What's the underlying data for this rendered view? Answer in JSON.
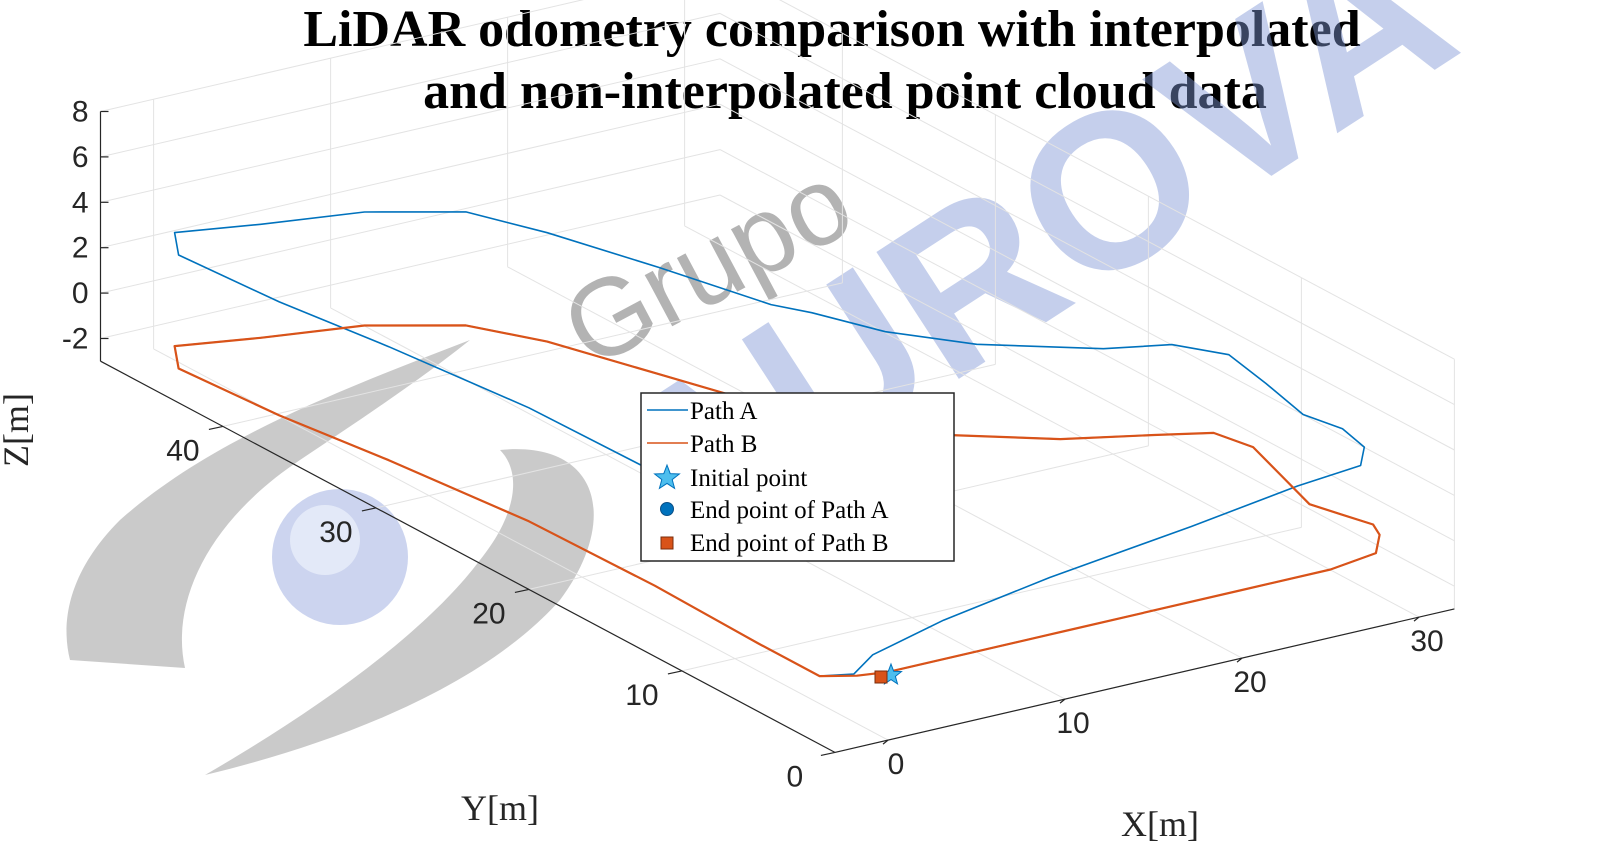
{
  "title_lines": [
    "LiDAR odometry comparison with interpolated",
    "and non-interpolated point cloud data"
  ],
  "watermark": {
    "small": "Grupo",
    "large": "AUROVA"
  },
  "colors": {
    "path_a": "#0072BD",
    "path_b": "#D95319",
    "grid": "#e3e3e3",
    "axis": "#262626"
  },
  "chart_data": {
    "type": "line3d",
    "xlabel": "X[m]",
    "ylabel": "Y[m]",
    "zlabel": "Z[m]",
    "xlim": [
      -3,
      32
    ],
    "ylim": [
      0,
      48
    ],
    "zlim": [
      -3,
      8
    ],
    "x_ticks": [
      "0",
      "10",
      "20",
      "30"
    ],
    "y_ticks": [
      "0",
      "10",
      "20",
      "30",
      "40"
    ],
    "z_ticks": [
      "-2",
      "0",
      "2",
      "4",
      "6",
      "8"
    ],
    "grid": true,
    "legend_position": "center",
    "series": [
      {
        "name": "Path A",
        "points": [
          [
            0,
            0,
            0
          ],
          [
            10,
            0,
            0
          ],
          [
            20,
            0,
            0
          ],
          [
            25,
            0,
            0
          ],
          [
            28,
            0.5,
            0
          ],
          [
            29.5,
            2,
            0
          ],
          [
            30,
            3,
            0
          ],
          [
            29.5,
            4.5,
            0
          ],
          [
            29,
            6,
            0
          ],
          [
            30,
            9,
            0
          ],
          [
            31,
            12,
            0
          ],
          [
            30.5,
            14,
            0
          ],
          [
            28,
            15,
            0
          ],
          [
            24,
            16.5,
            0
          ],
          [
            20,
            19,
            0
          ],
          [
            17,
            22,
            0
          ],
          [
            15,
            25,
            0
          ],
          [
            13,
            30,
            0
          ],
          [
            11,
            35,
            0
          ],
          [
            9,
            38,
            0
          ],
          [
            5,
            40,
            0
          ],
          [
            0,
            41,
            0
          ],
          [
            -4,
            42,
            0
          ],
          [
            -5.5,
            40,
            0
          ],
          [
            -5,
            34,
            0
          ],
          [
            -4,
            28,
            0
          ],
          [
            -3,
            20,
            0
          ],
          [
            -2.8,
            12,
            0
          ],
          [
            -3,
            5,
            0
          ],
          [
            -3,
            1,
            0
          ],
          [
            -1.5,
            0.5,
            0
          ],
          [
            0,
            1,
            0.4
          ],
          [
            4,
            1,
            1.2
          ],
          [
            10,
            1,
            2
          ],
          [
            18,
            1,
            2.8
          ],
          [
            24,
            1,
            3.5
          ],
          [
            28,
            1.5,
            3.5
          ],
          [
            29.5,
            3,
            3.5
          ],
          [
            30,
            5,
            3.5
          ],
          [
            29.5,
            7,
            3.5
          ],
          [
            30,
            10,
            3.7
          ],
          [
            30.5,
            13,
            3.8
          ],
          [
            29,
            15,
            3.8
          ],
          [
            26,
            16,
            3.8
          ],
          [
            21,
            18.5,
            4
          ],
          [
            18,
            21,
            4.2
          ],
          [
            16,
            23.5,
            4.5
          ],
          [
            15,
            25,
            4.5
          ],
          [
            13,
            30,
            4.7
          ],
          [
            11,
            35,
            4.8
          ],
          [
            9,
            38,
            5
          ],
          [
            5,
            40,
            5
          ],
          [
            0,
            41,
            5
          ],
          [
            -4,
            42,
            5
          ],
          [
            -5.5,
            40,
            5
          ],
          [
            -5,
            34,
            5
          ],
          [
            -4,
            28,
            5
          ],
          [
            -3,
            20,
            5
          ],
          [
            -2.8,
            12,
            5
          ],
          [
            -3,
            4,
            5
          ],
          [
            -2,
            1.2,
            5
          ],
          [
            0,
            1.8,
            5
          ],
          [
            2,
            2,
            5
          ]
        ]
      },
      {
        "name": "Path B",
        "points": [
          [
            0,
            0,
            0
          ],
          [
            10,
            0,
            0
          ],
          [
            20,
            0,
            0
          ],
          [
            25,
            0,
            0
          ],
          [
            28,
            0.5,
            0
          ],
          [
            29.5,
            2,
            0
          ],
          [
            30,
            3,
            0
          ],
          [
            29.5,
            4.5,
            0
          ],
          [
            29,
            6,
            0
          ],
          [
            30,
            9,
            0
          ],
          [
            31,
            12,
            0
          ],
          [
            30.5,
            14,
            0
          ],
          [
            28,
            15,
            0
          ],
          [
            24,
            16.5,
            0
          ],
          [
            20,
            19,
            0
          ],
          [
            17,
            22,
            0
          ],
          [
            15,
            25,
            0
          ],
          [
            13,
            30,
            0
          ],
          [
            11,
            35,
            0
          ],
          [
            9,
            38,
            0
          ],
          [
            5,
            40,
            0
          ],
          [
            0,
            41,
            0
          ],
          [
            -4,
            42,
            0
          ],
          [
            -5.5,
            40,
            0
          ],
          [
            -5,
            34,
            0
          ],
          [
            -4,
            28,
            0
          ],
          [
            -3,
            20,
            0
          ],
          [
            -2.8,
            12,
            0
          ],
          [
            -3,
            5,
            0
          ],
          [
            -3,
            1,
            0
          ],
          [
            -1.5,
            0.3,
            0
          ],
          [
            0,
            0,
            0
          ]
        ]
      }
    ],
    "markers": [
      {
        "name": "Initial point",
        "shape": "star",
        "color": "#4DBEEE",
        "point": [
          0,
          0,
          0
        ]
      },
      {
        "name": "End point of Path A",
        "shape": "circle",
        "color": "#0072BD",
        "point": [
          2,
          2,
          5
        ]
      },
      {
        "name": "End point of Path B",
        "shape": "square",
        "color": "#D95319",
        "point": [
          0,
          0,
          0
        ]
      }
    ]
  }
}
